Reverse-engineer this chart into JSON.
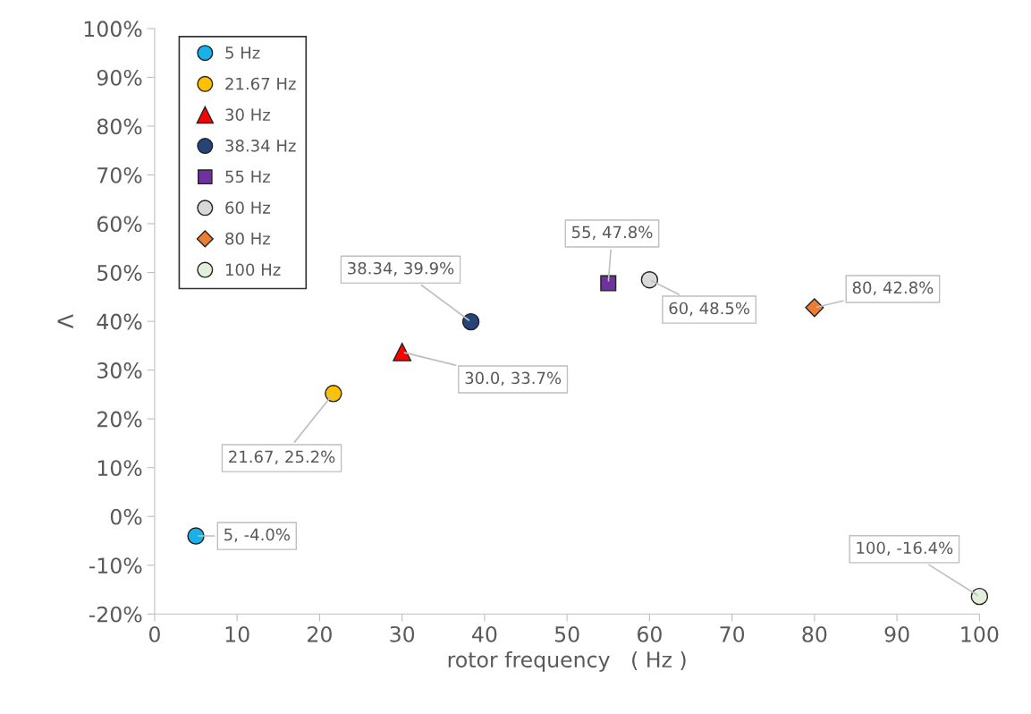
{
  "chart_data": {
    "type": "scatter",
    "xlabel": "rotor frequency   ( Hz )",
    "ylabel": "Λ",
    "xlim": [
      0,
      100
    ],
    "ylim": [
      -20,
      100
    ],
    "xticks": [
      0,
      10,
      20,
      30,
      40,
      50,
      60,
      70,
      80,
      90,
      100
    ],
    "yticks": [
      {
        "value": -20,
        "label": "-20%"
      },
      {
        "value": -10,
        "label": "-10%"
      },
      {
        "value": 0,
        "label": "0%"
      },
      {
        "value": 10,
        "label": "10%"
      },
      {
        "value": 20,
        "label": "20%"
      },
      {
        "value": 30,
        "label": "30%"
      },
      {
        "value": 40,
        "label": "40%"
      },
      {
        "value": 50,
        "label": "50%"
      },
      {
        "value": 60,
        "label": "60%"
      },
      {
        "value": 70,
        "label": "70%"
      },
      {
        "value": 80,
        "label": "80%"
      },
      {
        "value": 90,
        "label": "90%"
      },
      {
        "value": 100,
        "label": "100%"
      }
    ],
    "grid": false,
    "legend": "top left",
    "series": [
      {
        "name": "5 Hz",
        "color": "#1ab0e8",
        "marker": "circle",
        "x": [
          5
        ],
        "values": [
          -4.0
        ],
        "value_labels": [
          "5, -4.0%"
        ]
      },
      {
        "name": "21.67 Hz",
        "color": "#ffc000",
        "marker": "circle",
        "x": [
          21.67
        ],
        "values": [
          25.2
        ],
        "value_labels": [
          "21.67, 25.2%"
        ]
      },
      {
        "name": "30 Hz",
        "color": "#ff0000",
        "marker": "triangle",
        "x": [
          30.0
        ],
        "values": [
          33.7
        ],
        "value_labels": [
          "30.0, 33.7%"
        ]
      },
      {
        "name": "38.34 Hz",
        "color": "#264478",
        "marker": "circle",
        "x": [
          38.34
        ],
        "values": [
          39.9
        ],
        "value_labels": [
          "38.34, 39.9%"
        ]
      },
      {
        "name": "55 Hz",
        "color": "#7030a0",
        "marker": "square",
        "x": [
          55
        ],
        "values": [
          47.8
        ],
        "value_labels": [
          "55, 47.8%"
        ]
      },
      {
        "name": "60 Hz",
        "color": "#d9d9d9",
        "marker": "circle",
        "x": [
          60
        ],
        "values": [
          48.5
        ],
        "value_labels": [
          "60, 48.5%"
        ]
      },
      {
        "name": "80 Hz",
        "color": "#ed7d31",
        "marker": "diamond",
        "x": [
          80
        ],
        "values": [
          42.8
        ],
        "value_labels": [
          "80, 42.8%"
        ]
      },
      {
        "name": "100 Hz",
        "color": "#e2efda",
        "marker": "circle",
        "x": [
          100
        ],
        "values": [
          -16.4
        ],
        "value_labels": [
          "100, -16.4%"
        ]
      }
    ]
  }
}
